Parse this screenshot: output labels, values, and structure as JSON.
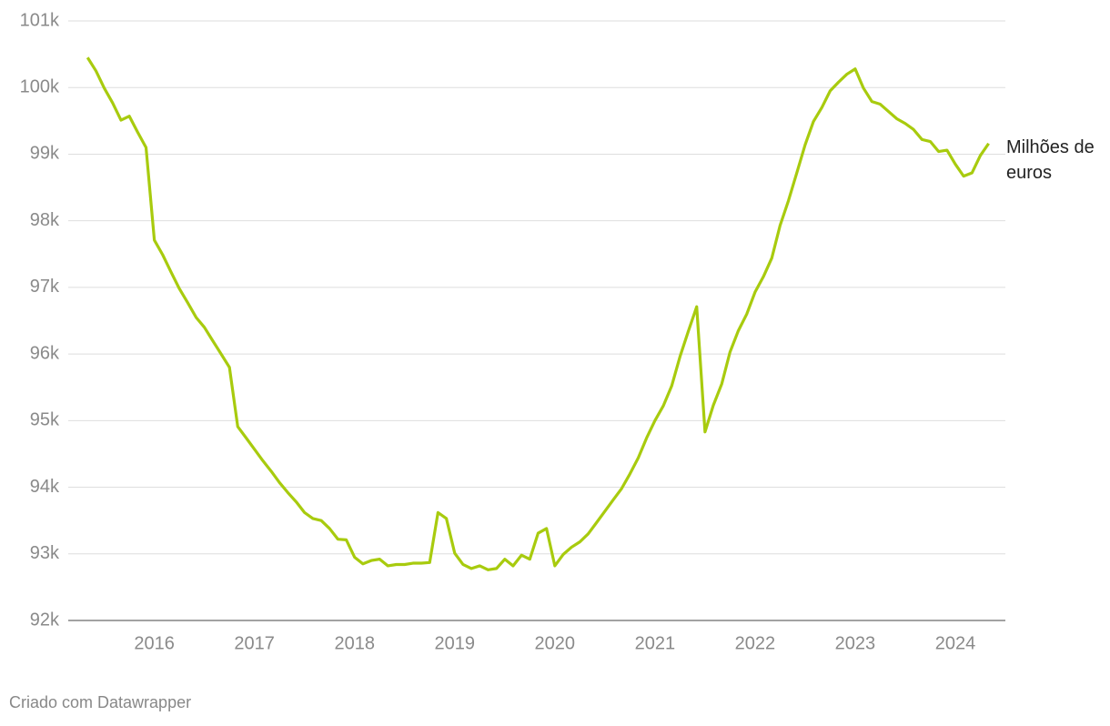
{
  "chart_data": {
    "type": "line",
    "credit": "Criado com Datawrapper",
    "x": [
      2015.333,
      2015.417,
      2015.5,
      2015.583,
      2015.667,
      2015.75,
      2015.833,
      2015.917,
      2016,
      2016.083,
      2016.167,
      2016.25,
      2016.333,
      2016.417,
      2016.5,
      2016.583,
      2016.667,
      2016.75,
      2016.833,
      2016.917,
      2017,
      2017.083,
      2017.167,
      2017.25,
      2017.333,
      2017.417,
      2017.5,
      2017.583,
      2017.667,
      2017.75,
      2017.833,
      2017.917,
      2018,
      2018.083,
      2018.167,
      2018.25,
      2018.333,
      2018.417,
      2018.5,
      2018.583,
      2018.667,
      2018.75,
      2018.833,
      2018.917,
      2019,
      2019.083,
      2019.167,
      2019.25,
      2019.333,
      2019.417,
      2019.5,
      2019.583,
      2019.667,
      2019.75,
      2019.833,
      2019.917,
      2020,
      2020.083,
      2020.167,
      2020.25,
      2020.333,
      2020.417,
      2020.5,
      2020.583,
      2020.667,
      2020.75,
      2020.833,
      2020.917,
      2021,
      2021.083,
      2021.167,
      2021.25,
      2021.333,
      2021.417,
      2021.5,
      2021.583,
      2021.667,
      2021.75,
      2021.833,
      2021.917,
      2022,
      2022.083,
      2022.167,
      2022.25,
      2022.333,
      2022.417,
      2022.5,
      2022.583,
      2022.667,
      2022.75,
      2022.833,
      2022.917,
      2023,
      2023.083,
      2023.167,
      2023.25,
      2023.333,
      2023.417,
      2023.5,
      2023.583,
      2023.667,
      2023.75,
      2023.833,
      2023.917,
      2024,
      2024.083,
      2024.167,
      2024.25,
      2024.333
    ],
    "series": [
      {
        "name": "Milhões de euros",
        "color": "#a8cb0e",
        "values": [
          100450,
          100250,
          99990,
          99770,
          99510,
          99570,
          99330,
          99100,
          97710,
          97490,
          97230,
          96980,
          96770,
          96550,
          96400,
          96200,
          96000,
          95800,
          94910,
          94740,
          94570,
          94400,
          94240,
          94070,
          93920,
          93780,
          93620,
          93530,
          93500,
          93380,
          93220,
          93210,
          92950,
          92850,
          92900,
          92920,
          92820,
          92840,
          92840,
          92860,
          92860,
          92870,
          93620,
          93530,
          93010,
          92840,
          92780,
          92820,
          92760,
          92780,
          92920,
          92820,
          92980,
          92920,
          93310,
          93380,
          92820,
          92990,
          93100,
          93180,
          93300,
          93470,
          93640,
          93810,
          93980,
          94200,
          94440,
          94740,
          95000,
          95220,
          95520,
          95960,
          96340,
          96710,
          94830,
          95230,
          95550,
          96030,
          96350,
          96600,
          96930,
          97160,
          97440,
          97930,
          98300,
          98720,
          99140,
          99490,
          99700,
          99950,
          100080,
          100200,
          100280,
          99990,
          99790,
          99750,
          99640,
          99530,
          99460,
          99370,
          99220,
          99190,
          99040,
          99060,
          98850,
          98670,
          98720,
          98980,
          99160
        ]
      }
    ],
    "xlim": [
      2015.14,
      2024.5
    ],
    "xticks": [
      2016,
      2017,
      2018,
      2019,
      2020,
      2021,
      2022,
      2023,
      2024
    ],
    "ylim": [
      92000,
      101000
    ],
    "yticks": [
      {
        "value": 92000,
        "label": "92k"
      },
      {
        "value": 93000,
        "label": "93k"
      },
      {
        "value": 94000,
        "label": "94k"
      },
      {
        "value": 95000,
        "label": "95k"
      },
      {
        "value": 96000,
        "label": "96k"
      },
      {
        "value": 97000,
        "label": "97k"
      },
      {
        "value": 98000,
        "label": "98k"
      },
      {
        "value": 99000,
        "label": "99k"
      },
      {
        "value": 100000,
        "label": "100k"
      },
      {
        "value": 101000,
        "label": "101k"
      }
    ],
    "grid": true
  }
}
